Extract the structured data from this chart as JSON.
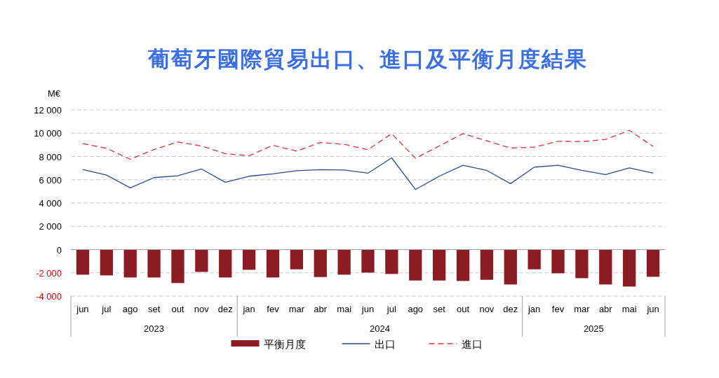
{
  "chart_data": {
    "type": "bar",
    "title": "葡萄牙國際貿易出口、進口及平衡月度結果",
    "ylabel": "M€",
    "categories": [
      "jun",
      "jul",
      "ago",
      "set",
      "out",
      "nov",
      "dez",
      "jan",
      "fev",
      "mar",
      "abr",
      "mai",
      "jun",
      "jul",
      "ago",
      "set",
      "out",
      "nov",
      "dez",
      "jan",
      "fev",
      "mar",
      "abr",
      "mai",
      "jun"
    ],
    "annotations": [
      "2023",
      "2024",
      "2025"
    ],
    "series": [
      {
        "name": "平衡月度",
        "color": "#8b1c24",
        "values": [
          -2160,
          -2220,
          -2400,
          -2400,
          -2880,
          -1920,
          -2400,
          -1740,
          -2400,
          -1700,
          -2360,
          -2160,
          -1980,
          -2100,
          -2660,
          -2660,
          -2700,
          -2600,
          -3000,
          -1700,
          -2040,
          -2460,
          -3000,
          -3180,
          -2340
        ]
      },
      {
        "name": "出口",
        "type": "line",
        "line_style": "solid",
        "color": "#2e4a8c",
        "values": [
          6880,
          6400,
          5300,
          6180,
          6340,
          6920,
          5780,
          6300,
          6500,
          6780,
          6860,
          6840,
          6560,
          7880,
          5160,
          6300,
          7240,
          6800,
          5660,
          7080,
          7240,
          6800,
          6440,
          7020,
          6560
        ]
      },
      {
        "name": "進口",
        "type": "line",
        "line_style": "dashed",
        "color": "#d9343f",
        "values": [
          9100,
          8700,
          7760,
          8600,
          9240,
          8900,
          8240,
          8060,
          8960,
          8460,
          9200,
          9040,
          8580,
          9960,
          7840,
          8900,
          9960,
          9340,
          8720,
          8800,
          9300,
          9280,
          9460,
          10240,
          8860
        ]
      }
    ],
    "ylim": [
      -4000,
      12000
    ],
    "yticks": [
      {
        "value": -4000,
        "label": "-4 000"
      },
      {
        "value": -2000,
        "label": "-2 000"
      },
      0,
      {
        "value": 2000,
        "label": "2 000"
      },
      {
        "value": 4000,
        "label": "4 000"
      },
      {
        "value": 6000,
        "label": "6 000"
      },
      {
        "value": 8000,
        "label": "8 000"
      },
      {
        "value": 10000,
        "label": "10 000"
      },
      {
        "value": 12000,
        "label": "12 000"
      }
    ],
    "grid": "y",
    "legend": "bottom"
  }
}
